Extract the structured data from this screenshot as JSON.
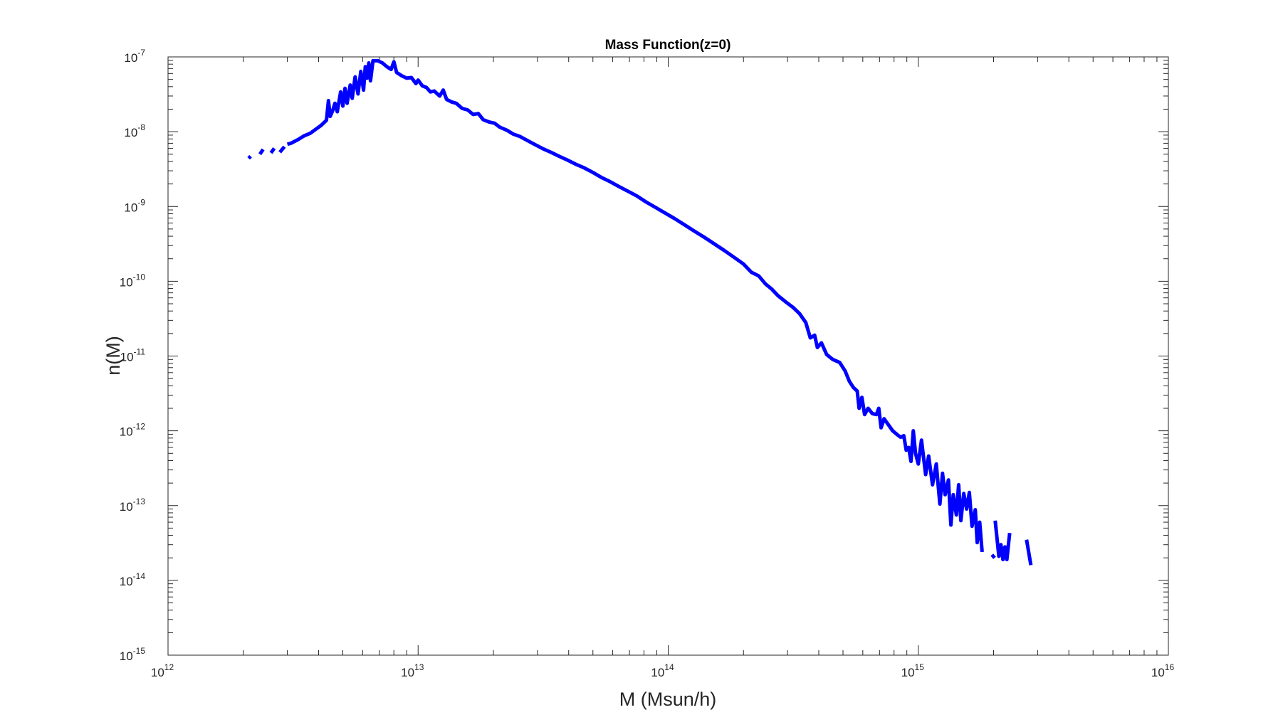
{
  "chart_data": {
    "type": "line",
    "title": "Mass Function(z=0)",
    "xlabel": "M (Msun/h)",
    "ylabel": "n(M)",
    "xscale": "log",
    "yscale": "log",
    "xlim": [
      1000000000000.0,
      1e+16
    ],
    "ylim": [
      1e-15,
      1e-07
    ],
    "grid": false,
    "legend": "none",
    "box": true,
    "x_ticks": [
      {
        "base": "10",
        "exp": "12",
        "value": 1000000000000.0
      },
      {
        "base": "10",
        "exp": "13",
        "value": 10000000000000.0
      },
      {
        "base": "10",
        "exp": "14",
        "value": 100000000000000.0
      },
      {
        "base": "10",
        "exp": "15",
        "value": 1000000000000000.0
      },
      {
        "base": "10",
        "exp": "16",
        "value": 1e+16
      }
    ],
    "y_ticks": [
      {
        "base": "10",
        "exp": "-15",
        "value": 1e-15
      },
      {
        "base": "10",
        "exp": "-14",
        "value": 1e-14
      },
      {
        "base": "10",
        "exp": "-13",
        "value": 1e-13
      },
      {
        "base": "10",
        "exp": "-12",
        "value": 1e-12
      },
      {
        "base": "10",
        "exp": "-11",
        "value": 1e-11
      },
      {
        "base": "10",
        "exp": "-10",
        "value": 1e-10
      },
      {
        "base": "10",
        "exp": "-9",
        "value": 1e-09
      },
      {
        "base": "10",
        "exp": "-8",
        "value": 1e-08
      },
      {
        "base": "10",
        "exp": "-7",
        "value": 1e-07
      }
    ],
    "series": [
      {
        "color": "#0000ff",
        "segments": [
          [
            [
              2100000000000.0,
              4.4e-09
            ],
            [
              2140000000000.0,
              4.7e-09
            ]
          ],
          [
            [
              2330000000000.0,
              5e-09
            ],
            [
              2400000000000.0,
              5.8e-09
            ]
          ],
          [
            [
              2580000000000.0,
              5.2e-09
            ],
            [
              2660000000000.0,
              6e-09
            ]
          ],
          [
            [
              2800000000000.0,
              5.3e-09
            ],
            [
              2920000000000.0,
              6.3e-09
            ]
          ],
          [
            [
              3000000000000.0,
              6.8e-09
            ],
            [
              3100000000000.0,
              7e-09
            ],
            [
              3300000000000.0,
              7.8e-09
            ],
            [
              3500000000000.0,
              8.8e-09
            ],
            [
              3700000000000.0,
              9.5e-09
            ],
            [
              3900000000000.0,
              1.08e-08
            ],
            [
              4100000000000.0,
              1.22e-08
            ],
            [
              4300000000000.0,
              1.42e-08
            ],
            [
              4380000000000.0,
              2.6e-08
            ],
            [
              4450000000000.0,
              1.6e-08
            ],
            [
              4550000000000.0,
              1.9e-08
            ],
            [
              4650000000000.0,
              2.4e-08
            ],
            [
              4750000000000.0,
              1.85e-08
            ],
            [
              4900000000000.0,
              3.4e-08
            ],
            [
              5000000000000.0,
              2.2e-08
            ],
            [
              5100000000000.0,
              3.8e-08
            ],
            [
              5200000000000.0,
              2.4e-08
            ],
            [
              5350000000000.0,
              4.2e-08
            ],
            [
              5450000000000.0,
              2.8e-08
            ],
            [
              5600000000000.0,
              5.4e-08
            ],
            [
              5750000000000.0,
              3.2e-08
            ],
            [
              5900000000000.0,
              6.4e-08
            ],
            [
              6050000000000.0,
              3.6e-08
            ],
            [
              6150000000000.0,
              7.4e-08
            ],
            [
              6250000000000.0,
              5.2e-08
            ],
            [
              6350000000000.0,
              8.3e-08
            ],
            [
              6450000000000.0,
              4.8e-08
            ],
            [
              6600000000000.0,
              8.9e-08
            ],
            [
              6900000000000.0,
              8.9e-08
            ],
            [
              7200000000000.0,
              8.3e-08
            ],
            [
              7500000000000.0,
              7.4e-08
            ],
            [
              7800000000000.0,
              6.8e-08
            ],
            [
              8000000000000.0,
              8.6e-08
            ],
            [
              8200000000000.0,
              6.2e-08
            ],
            [
              8600000000000.0,
              5.6e-08
            ],
            [
              9000000000000.0,
              5.2e-08
            ],
            [
              9400000000000.0,
              5.3e-08
            ],
            [
              9800000000000.0,
              4.4e-08
            ],
            [
              10000000000000.0,
              4.9e-08
            ],
            [
              10400000000000.0,
              4.1e-08
            ],
            [
              10800000000000.0,
              3.9e-08
            ],
            [
              11200000000000.0,
              3.4e-08
            ],
            [
              11600000000000.0,
              3.5e-08
            ],
            [
              12200000000000.0,
              3e-08
            ],
            [
              12600000000000.0,
              3.6e-08
            ],
            [
              13000000000000.0,
              2.7e-08
            ],
            [
              13600000000000.0,
              2.5e-08
            ],
            [
              14200000000000.0,
              2.4e-08
            ],
            [
              15000000000000.0,
              2.05e-08
            ],
            [
              15800000000000.0,
              1.95e-08
            ],
            [
              16600000000000.0,
              1.7e-08
            ],
            [
              17400000000000.0,
              1.75e-08
            ],
            [
              18200000000000.0,
              1.45e-08
            ],
            [
              19200000000000.0,
              1.35e-08
            ],
            [
              20200000000000.0,
              1.3e-08
            ],
            [
              21200000000000.0,
              1.15e-08
            ],
            [
              22600000000000.0,
              1.05e-08
            ],
            [
              24000000000000.0,
              9.3e-09
            ],
            [
              25600000000000.0,
              8.6e-09
            ],
            [
              27400000000000.0,
              7.6e-09
            ],
            [
              29400000000000.0,
              6.7e-09
            ],
            [
              31600000000000.0,
              5.9e-09
            ],
            [
              34000000000000.0,
              5.3e-09
            ],
            [
              36600000000000.0,
              4.7e-09
            ],
            [
              39400000000000.0,
              4.2e-09
            ],
            [
              42500000000000.0,
              3.7e-09
            ],
            [
              46000000000000.0,
              3.3e-09
            ],
            [
              50000000000000.0,
              2.85e-09
            ],
            [
              54000000000000.0,
              2.45e-09
            ],
            [
              58500000000000.0,
              2.15e-09
            ],
            [
              63500000000000.0,
              1.85e-09
            ],
            [
              69000000000000.0,
              1.6e-09
            ],
            [
              75000000000000.0,
              1.38e-09
            ],
            [
              81500000000000.0,
              1.15e-09
            ],
            [
              89000000000000.0,
              9.7e-10
            ],
            [
              97000000000000.0,
              8.2e-10
            ],
            [
              106000000000000.0,
              6.9e-10
            ],
            [
              116000000000000.0,
              5.7e-10
            ],
            [
              127000000000000.0,
              4.7e-10
            ],
            [
              139000000000000.0,
              3.9e-10
            ],
            [
              152000000000000.0,
              3.2e-10
            ],
            [
              167000000000000.0,
              2.6e-10
            ],
            [
              183000000000000.0,
              2.1e-10
            ],
            [
              200000000000000.0,
              1.7e-10
            ],
            [
              215000000000000.0,
              1.32e-10
            ],
            [
              230000000000000.0,
              1.18e-10
            ],
            [
              245000000000000.0,
              9.2e-11
            ],
            [
              260000000000000.0,
              7.8e-11
            ],
            [
              275000000000000.0,
              6.4e-11
            ],
            [
              295000000000000.0,
              5.3e-11
            ],
            [
              315000000000000.0,
              4.5e-11
            ],
            [
              335000000000000.0,
              3.7e-11
            ],
            [
              355000000000000.0,
              2.8e-11
            ],
            [
              370000000000000.0,
              1.75e-11
            ],
            [
              385000000000000.0,
              1.9e-11
            ],
            [
              395000000000000.0,
              1.3e-11
            ],
            [
              410000000000000.0,
              1.5e-11
            ],
            [
              430000000000000.0,
              1.05e-11
            ],
            [
              455000000000000.0,
              9e-12
            ],
            [
              485000000000000.0,
              8.2e-12
            ],
            [
              510000000000000.0,
              6.3e-12
            ],
            [
              530000000000000.0,
              4.6e-12
            ],
            [
              550000000000000.0,
              3.8e-12
            ],
            [
              570000000000000.0,
              3.4e-12
            ],
            [
              580000000000000.0,
              2e-12
            ],
            [
              595000000000000.0,
              2.8e-12
            ],
            [
              610000000000000.0,
              1.65e-12
            ],
            [
              630000000000000.0,
              2e-12
            ],
            [
              655000000000000.0,
              1.7e-12
            ],
            [
              680000000000000.0,
              1.65e-12
            ],
            [
              695000000000000.0,
              2e-12
            ],
            [
              710000000000000.0,
              1.1e-12
            ],
            [
              730000000000000.0,
              1.45e-12
            ],
            [
              760000000000000.0,
              1.2e-12
            ],
            [
              790000000000000.0,
              1e-12
            ],
            [
              820000000000000.0,
              9e-13
            ],
            [
              850000000000000.0,
              8.2e-13
            ],
            [
              875000000000000.0,
              8.6e-13
            ],
            [
              895000000000000.0,
              5.5e-13
            ],
            [
              915000000000000.0,
              6e-13
            ],
            [
              935000000000000.0,
              3.9e-13
            ],
            [
              955000000000000.0,
              1e-12
            ],
            [
              975000000000000.0,
              5e-13
            ],
            [
              1000000000000000.0,
              3.6e-13
            ],
            [
              1030000000000000.0,
              7.5e-13
            ],
            [
              1070000000000000.0,
              2.6e-13
            ],
            [
              1100000000000000.0,
              4.6e-13
            ],
            [
              1140000000000000.0,
              1.9e-13
            ],
            [
              1180000000000000.0,
              3.6e-13
            ],
            [
              1220000000000000.0,
              1.05e-13
            ],
            [
              1250000000000000.0,
              2.7e-13
            ],
            [
              1280000000000000.0,
              1.4e-13
            ],
            [
              1320000000000000.0,
              2.2e-13
            ],
            [
              1350000000000000.0,
              5.5e-14
            ],
            [
              1380000000000000.0,
              1.4e-13
            ],
            [
              1420000000000000.0,
              7.5e-14
            ],
            [
              1450000000000000.0,
              1.9e-13
            ],
            [
              1480000000000000.0,
              6.3e-14
            ],
            [
              1520000000000000.0,
              1.45e-13
            ],
            [
              1560000000000000.0,
              9e-14
            ],
            [
              1600000000000000.0,
              1.5e-13
            ],
            [
              1640000000000000.0,
              5.3e-14
            ],
            [
              1690000000000000.0,
              8.8e-14
            ],
            [
              1720000000000000.0,
              3.2e-14
            ],
            [
              1760000000000000.0,
              6e-14
            ],
            [
              1800000000000000.0,
              2.4e-14
            ]
          ],
          [
            [
              1970000000000000.0,
              2.2e-14
            ],
            [
              2020000000000000.0,
              2e-14
            ]
          ],
          [
            [
              2030000000000000.0,
              6.3e-14
            ],
            [
              2100000000000000.0,
              2.1e-14
            ],
            [
              2140000000000000.0,
              3e-14
            ],
            [
              2180000000000000.0,
              1.9e-14
            ],
            [
              2220000000000000.0,
              2.8e-14
            ],
            [
              2260000000000000.0,
              1.9e-14
            ],
            [
              2320000000000000.0,
              4.3e-14
            ]
          ],
          [
            [
              2710000000000000.0,
              3.5e-14
            ],
            [
              2820000000000000.0,
              1.6e-14
            ]
          ]
        ]
      }
    ]
  }
}
